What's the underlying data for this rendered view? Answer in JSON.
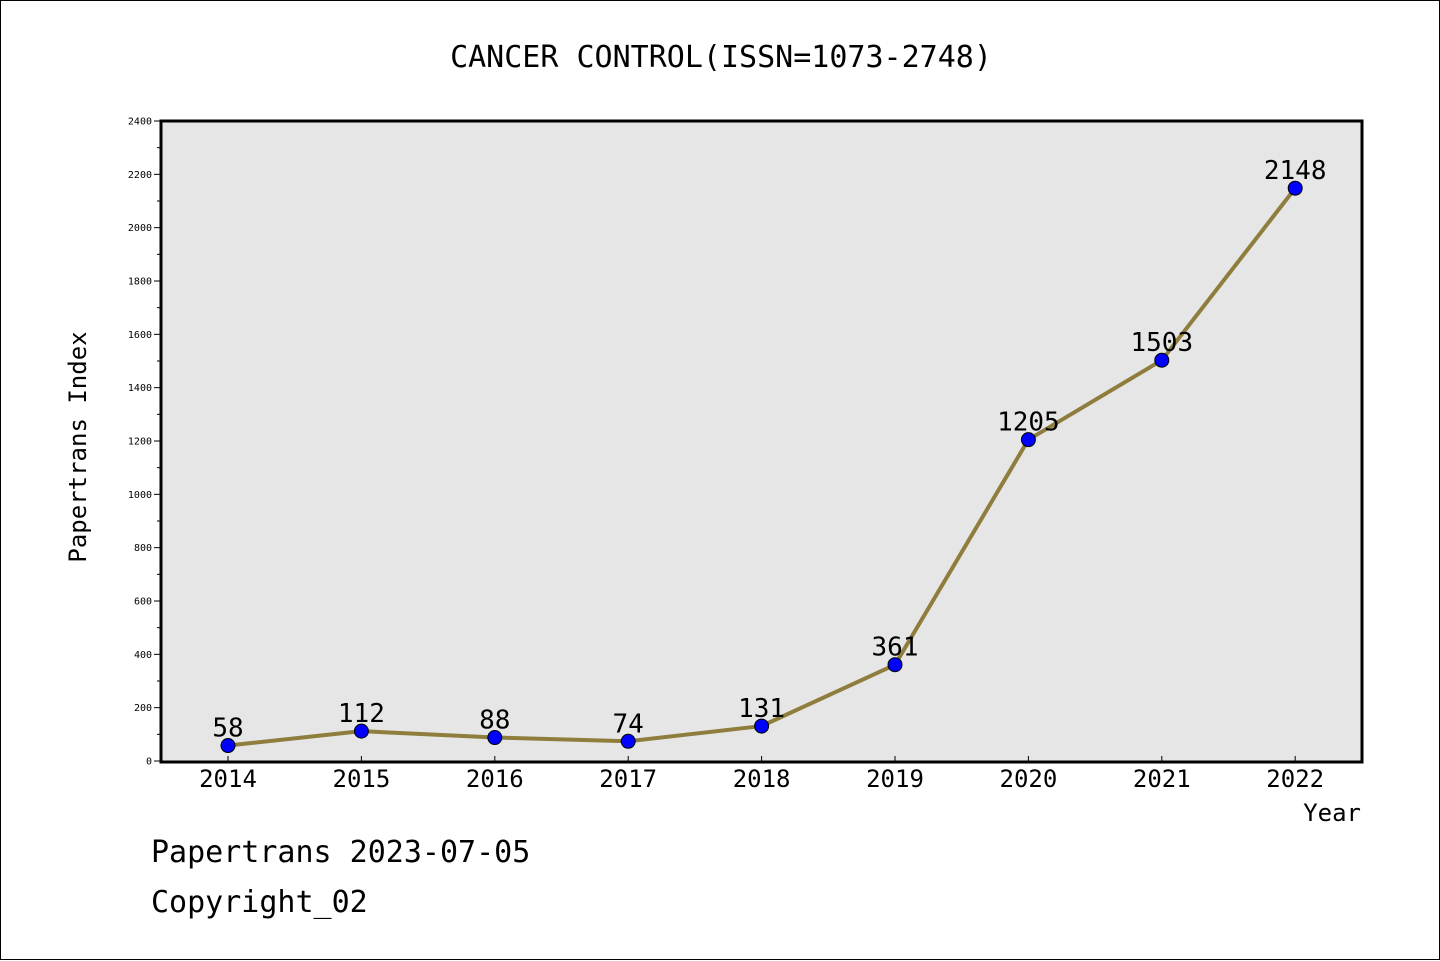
{
  "chart_data": {
    "type": "line",
    "title": "CANCER CONTROL(ISSN=1073-2748)",
    "xlabel": "Year",
    "ylabel": "Papertrans Index",
    "categories": [
      "2014",
      "2015",
      "2016",
      "2017",
      "2018",
      "2019",
      "2020",
      "2021",
      "2022"
    ],
    "series": [
      {
        "values": [
          58,
          112,
          88,
          74,
          131,
          361,
          1205,
          1503,
          2148
        ]
      }
    ],
    "ylim": [
      0,
      2400
    ],
    "yticks": [
      0,
      200,
      400,
      600,
      800,
      1000,
      1200,
      1400,
      1600,
      1800,
      2000,
      2200,
      2400
    ],
    "grid": false,
    "legend": "none",
    "data_labels": [
      "58",
      "112",
      "88",
      "74",
      "131",
      "361",
      "1205",
      "1503",
      "2148"
    ],
    "colors": {
      "line": "#8e7d3c",
      "marker_fill": "#0000ff",
      "plot_background": "#e6e6e6"
    }
  },
  "footer": {
    "date": "Papertrans 2023-07-05",
    "copyright": "Copyright_02"
  }
}
